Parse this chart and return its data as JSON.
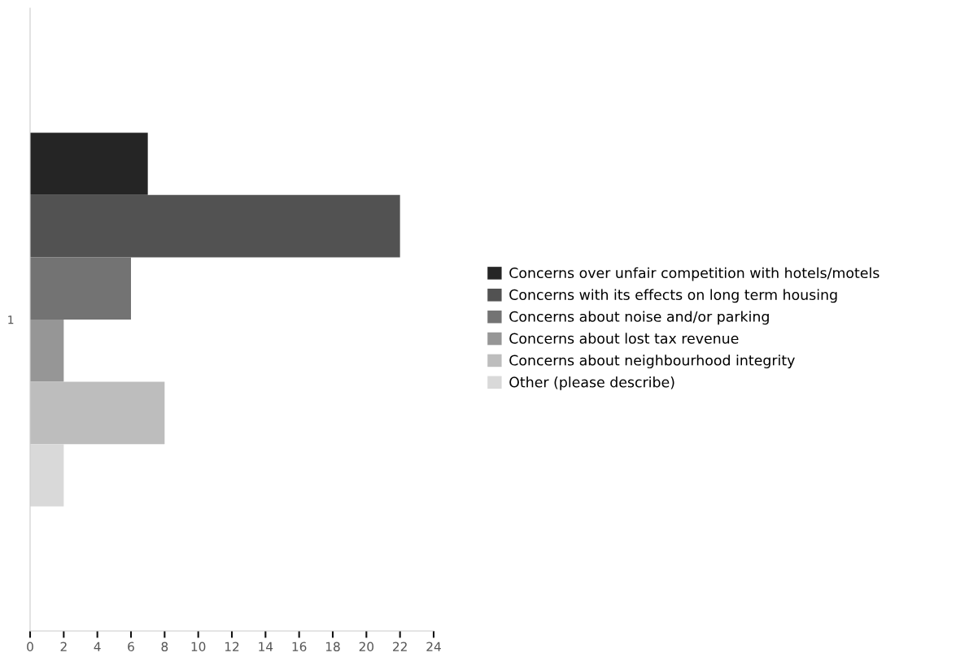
{
  "chart_data": {
    "type": "bar",
    "orientation": "horizontal",
    "categories": [
      "1"
    ],
    "series": [
      {
        "name": "Concerns over unfair competition with hotels/motels",
        "color": "#252525",
        "values": [
          7
        ]
      },
      {
        "name": "Concerns with its effects on long term housing",
        "color": "#525252",
        "values": [
          22
        ]
      },
      {
        "name": "Concerns about noise and/or parking",
        "color": "#737373",
        "values": [
          6
        ]
      },
      {
        "name": "Concerns about lost tax revenue",
        "color": "#969696",
        "values": [
          2
        ]
      },
      {
        "name": "Concerns about neighbourhood integrity",
        "color": "#bdbdbd",
        "values": [
          8
        ]
      },
      {
        "name": "Other (please describe)",
        "color": "#d9d9d9",
        "values": [
          2
        ]
      }
    ],
    "xlim": [
      0,
      24
    ],
    "xticks": [
      0,
      2,
      4,
      6,
      8,
      10,
      12,
      14,
      16,
      18,
      20,
      22,
      24
    ],
    "grid": false,
    "legend": "right"
  }
}
